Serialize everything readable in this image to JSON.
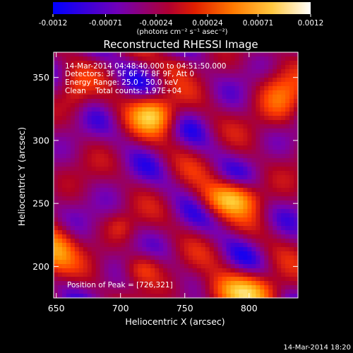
{
  "chart_data": {
    "type": "heatmap",
    "title": "Reconstructed RHESSI Image",
    "xlabel": "Heliocentric X (arcsec)",
    "ylabel": "Heliocentric Y (arcsec)",
    "xlim": [
      648,
      838
    ],
    "ylim": [
      175,
      370
    ],
    "x_ticks": [
      650,
      700,
      750,
      800
    ],
    "y_ticks": [
      200,
      250,
      300,
      350
    ],
    "info_lines": [
      "14-Mar-2014 04:48:40.000 to 04:51:50.000",
      "Detectors: 3F 5F 6F 7F 8F 9F, Att 0",
      "Energy Range: 25.0 - 50.0 keV",
      "Clean    Total counts: 1.97E+04"
    ],
    "peak_label": "Position of Peak = [726,321]",
    "colorbar": {
      "ticks": [
        "-0.0012",
        "-0.00071",
        "-0.00024",
        "0.00024",
        "0.00071",
        "0.0012"
      ],
      "tick_values": [
        -0.0012,
        -0.00071,
        -0.00024,
        0.00024,
        0.00071,
        0.0012
      ],
      "range": [
        -0.0012,
        0.0012
      ],
      "unit_label": "(photons cm⁻² s⁻¹ asec⁻²)"
    },
    "blobs": [
      {
        "x": 726,
        "y": 321,
        "sx": 12,
        "sy": 10,
        "amp": 0.0012
      },
      {
        "x": 786,
        "y": 254,
        "sx": 15,
        "sy": 9,
        "amp": 0.0011
      },
      {
        "x": 825,
        "y": 335,
        "sx": 12,
        "sy": 14,
        "amp": 0.00075
      },
      {
        "x": 648,
        "y": 212,
        "sx": 11,
        "sy": 13,
        "amp": 0.00105
      },
      {
        "x": 795,
        "y": 180,
        "sx": 22,
        "sy": 10,
        "amp": 0.00105
      },
      {
        "x": 717,
        "y": 198,
        "sx": 10,
        "sy": 8,
        "amp": 0.00055
      },
      {
        "x": 665,
        "y": 340,
        "sx": 8,
        "sy": 12,
        "amp": 0.0004
      },
      {
        "x": 744,
        "y": 360,
        "sx": 9,
        "sy": 7,
        "amp": 0.00028
      },
      {
        "x": 700,
        "y": 232,
        "sx": 7,
        "sy": 7,
        "amp": 0.00028
      }
    ],
    "background_level": -0.0006,
    "colormap": [
      "#0000ff",
      "#7a00b0",
      "#b00024",
      "#ff3c00",
      "#ff9000",
      "#ffd23c",
      "#ffffff"
    ]
  },
  "footer": {
    "timestamp": "14-Mar-2014 18:20"
  }
}
